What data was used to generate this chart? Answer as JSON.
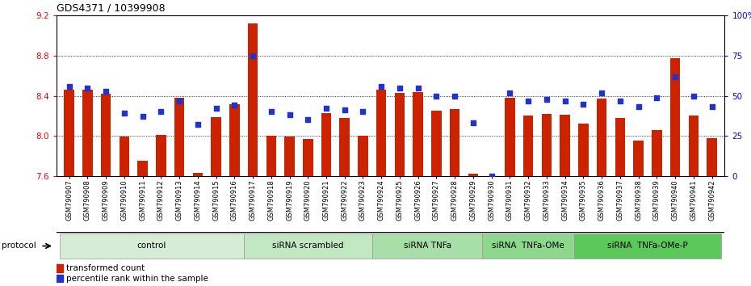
{
  "title": "GDS4371 / 10399908",
  "samples": [
    "GSM790907",
    "GSM790908",
    "GSM790909",
    "GSM790910",
    "GSM790911",
    "GSM790912",
    "GSM790913",
    "GSM790914",
    "GSM790915",
    "GSM790916",
    "GSM790917",
    "GSM790918",
    "GSM790919",
    "GSM790920",
    "GSM790921",
    "GSM790922",
    "GSM790923",
    "GSM790924",
    "GSM790925",
    "GSM790926",
    "GSM790927",
    "GSM790928",
    "GSM790929",
    "GSM790930",
    "GSM790931",
    "GSM790932",
    "GSM790933",
    "GSM790934",
    "GSM790935",
    "GSM790936",
    "GSM790937",
    "GSM790938",
    "GSM790939",
    "GSM790940",
    "GSM790941",
    "GSM790942"
  ],
  "bar_values": [
    8.46,
    8.46,
    8.42,
    7.99,
    7.75,
    8.01,
    8.38,
    7.63,
    8.19,
    8.32,
    9.12,
    8.0,
    7.99,
    7.97,
    8.23,
    8.18,
    8.0,
    8.46,
    8.43,
    8.44,
    8.25,
    8.27,
    7.62,
    7.6,
    8.38,
    8.2,
    8.22,
    8.21,
    8.12,
    8.37,
    8.18,
    7.95,
    8.06,
    8.78,
    8.2,
    7.98
  ],
  "dot_values": [
    56,
    55,
    53,
    39,
    37,
    40,
    47,
    32,
    42,
    44,
    75,
    40,
    38,
    35,
    42,
    41,
    40,
    56,
    55,
    55,
    50,
    50,
    33,
    0,
    52,
    47,
    48,
    47,
    45,
    52,
    47,
    43,
    49,
    62,
    50,
    43
  ],
  "groups": [
    {
      "label": "control",
      "start": 0,
      "end": 10,
      "color": "#d5edd5"
    },
    {
      "label": "siRNA scrambled",
      "start": 10,
      "end": 17,
      "color": "#c2e8c2"
    },
    {
      "label": "siRNA TNFa",
      "start": 17,
      "end": 23,
      "color": "#a8dea8"
    },
    {
      "label": "siRNA  TNFa-OMe",
      "start": 23,
      "end": 28,
      "color": "#8dd88d"
    },
    {
      "label": "siRNA  TNFa-OMe-P",
      "start": 28,
      "end": 36,
      "color": "#5cc85c"
    }
  ],
  "ylim_left": [
    7.6,
    9.2
  ],
  "ylim_right": [
    0,
    100
  ],
  "yticks_left": [
    7.6,
    8.0,
    8.4,
    8.8,
    9.2
  ],
  "yticks_right": [
    0,
    25,
    50,
    75,
    100
  ],
  "ytick_labels_right": [
    "0",
    "25",
    "50",
    "75",
    "100%"
  ],
  "bar_color": "#cc2200",
  "dot_color": "#2233cc",
  "bar_bottom": 7.6,
  "grid_lines": [
    8.0,
    8.4,
    8.8
  ]
}
